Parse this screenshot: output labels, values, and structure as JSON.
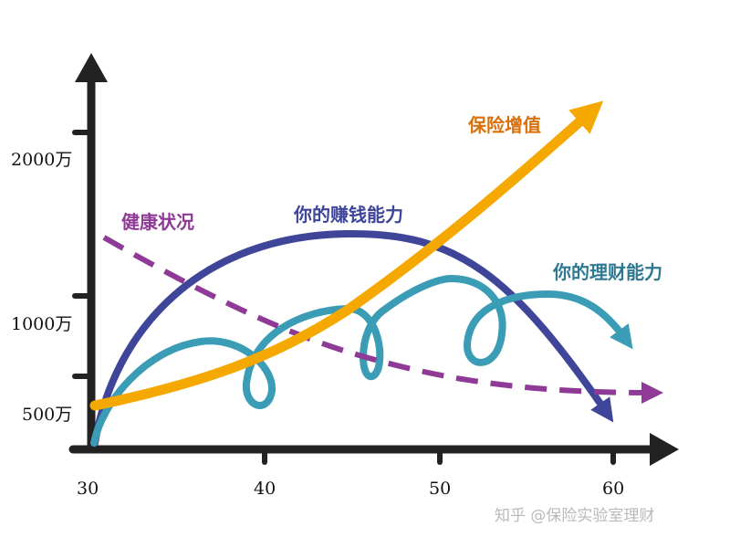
{
  "chart_data": {
    "type": "line",
    "x_ticks": [
      30,
      40,
      50,
      60
    ],
    "y_ticks": [
      {
        "value": 500,
        "label": "500万"
      },
      {
        "value": 1000,
        "label": "1000万"
      },
      {
        "value": 2000,
        "label": "2000万"
      }
    ],
    "series": [
      {
        "name": "保险增值",
        "color": "#f5a800",
        "style": "solid",
        "points": [
          [
            30,
            500
          ],
          [
            35,
            600
          ],
          [
            40,
            780
          ],
          [
            45,
            1050
          ],
          [
            50,
            1450
          ],
          [
            55,
            2000
          ],
          [
            58.8,
            2550
          ]
        ]
      },
      {
        "name": "你的赚钱能力",
        "color": "#3f4599",
        "style": "solid",
        "points": [
          [
            30,
            0
          ],
          [
            32,
            700
          ],
          [
            35,
            1200
          ],
          [
            40,
            1550
          ],
          [
            45,
            1700
          ],
          [
            48,
            1680
          ],
          [
            52,
            1500
          ],
          [
            56,
            1000
          ],
          [
            59.5,
            300
          ]
        ]
      },
      {
        "name": "健康状况",
        "color": "#8e3a96",
        "style": "dashed",
        "points": [
          [
            30,
            1600
          ],
          [
            35,
            1250
          ],
          [
            40,
            950
          ],
          [
            45,
            720
          ],
          [
            50,
            580
          ],
          [
            55,
            500
          ],
          [
            61.8,
            480
          ]
        ]
      },
      {
        "name": "你的理财能力",
        "color": "#3a9cb5",
        "style": "solid",
        "points": [
          [
            30,
            150
          ],
          [
            35,
            800
          ],
          [
            40,
            900
          ],
          [
            45,
            1150
          ],
          [
            50,
            1100
          ],
          [
            55,
            1200
          ],
          [
            59,
            950
          ]
        ]
      }
    ]
  },
  "watermark": "知乎 @保险实验室理财"
}
